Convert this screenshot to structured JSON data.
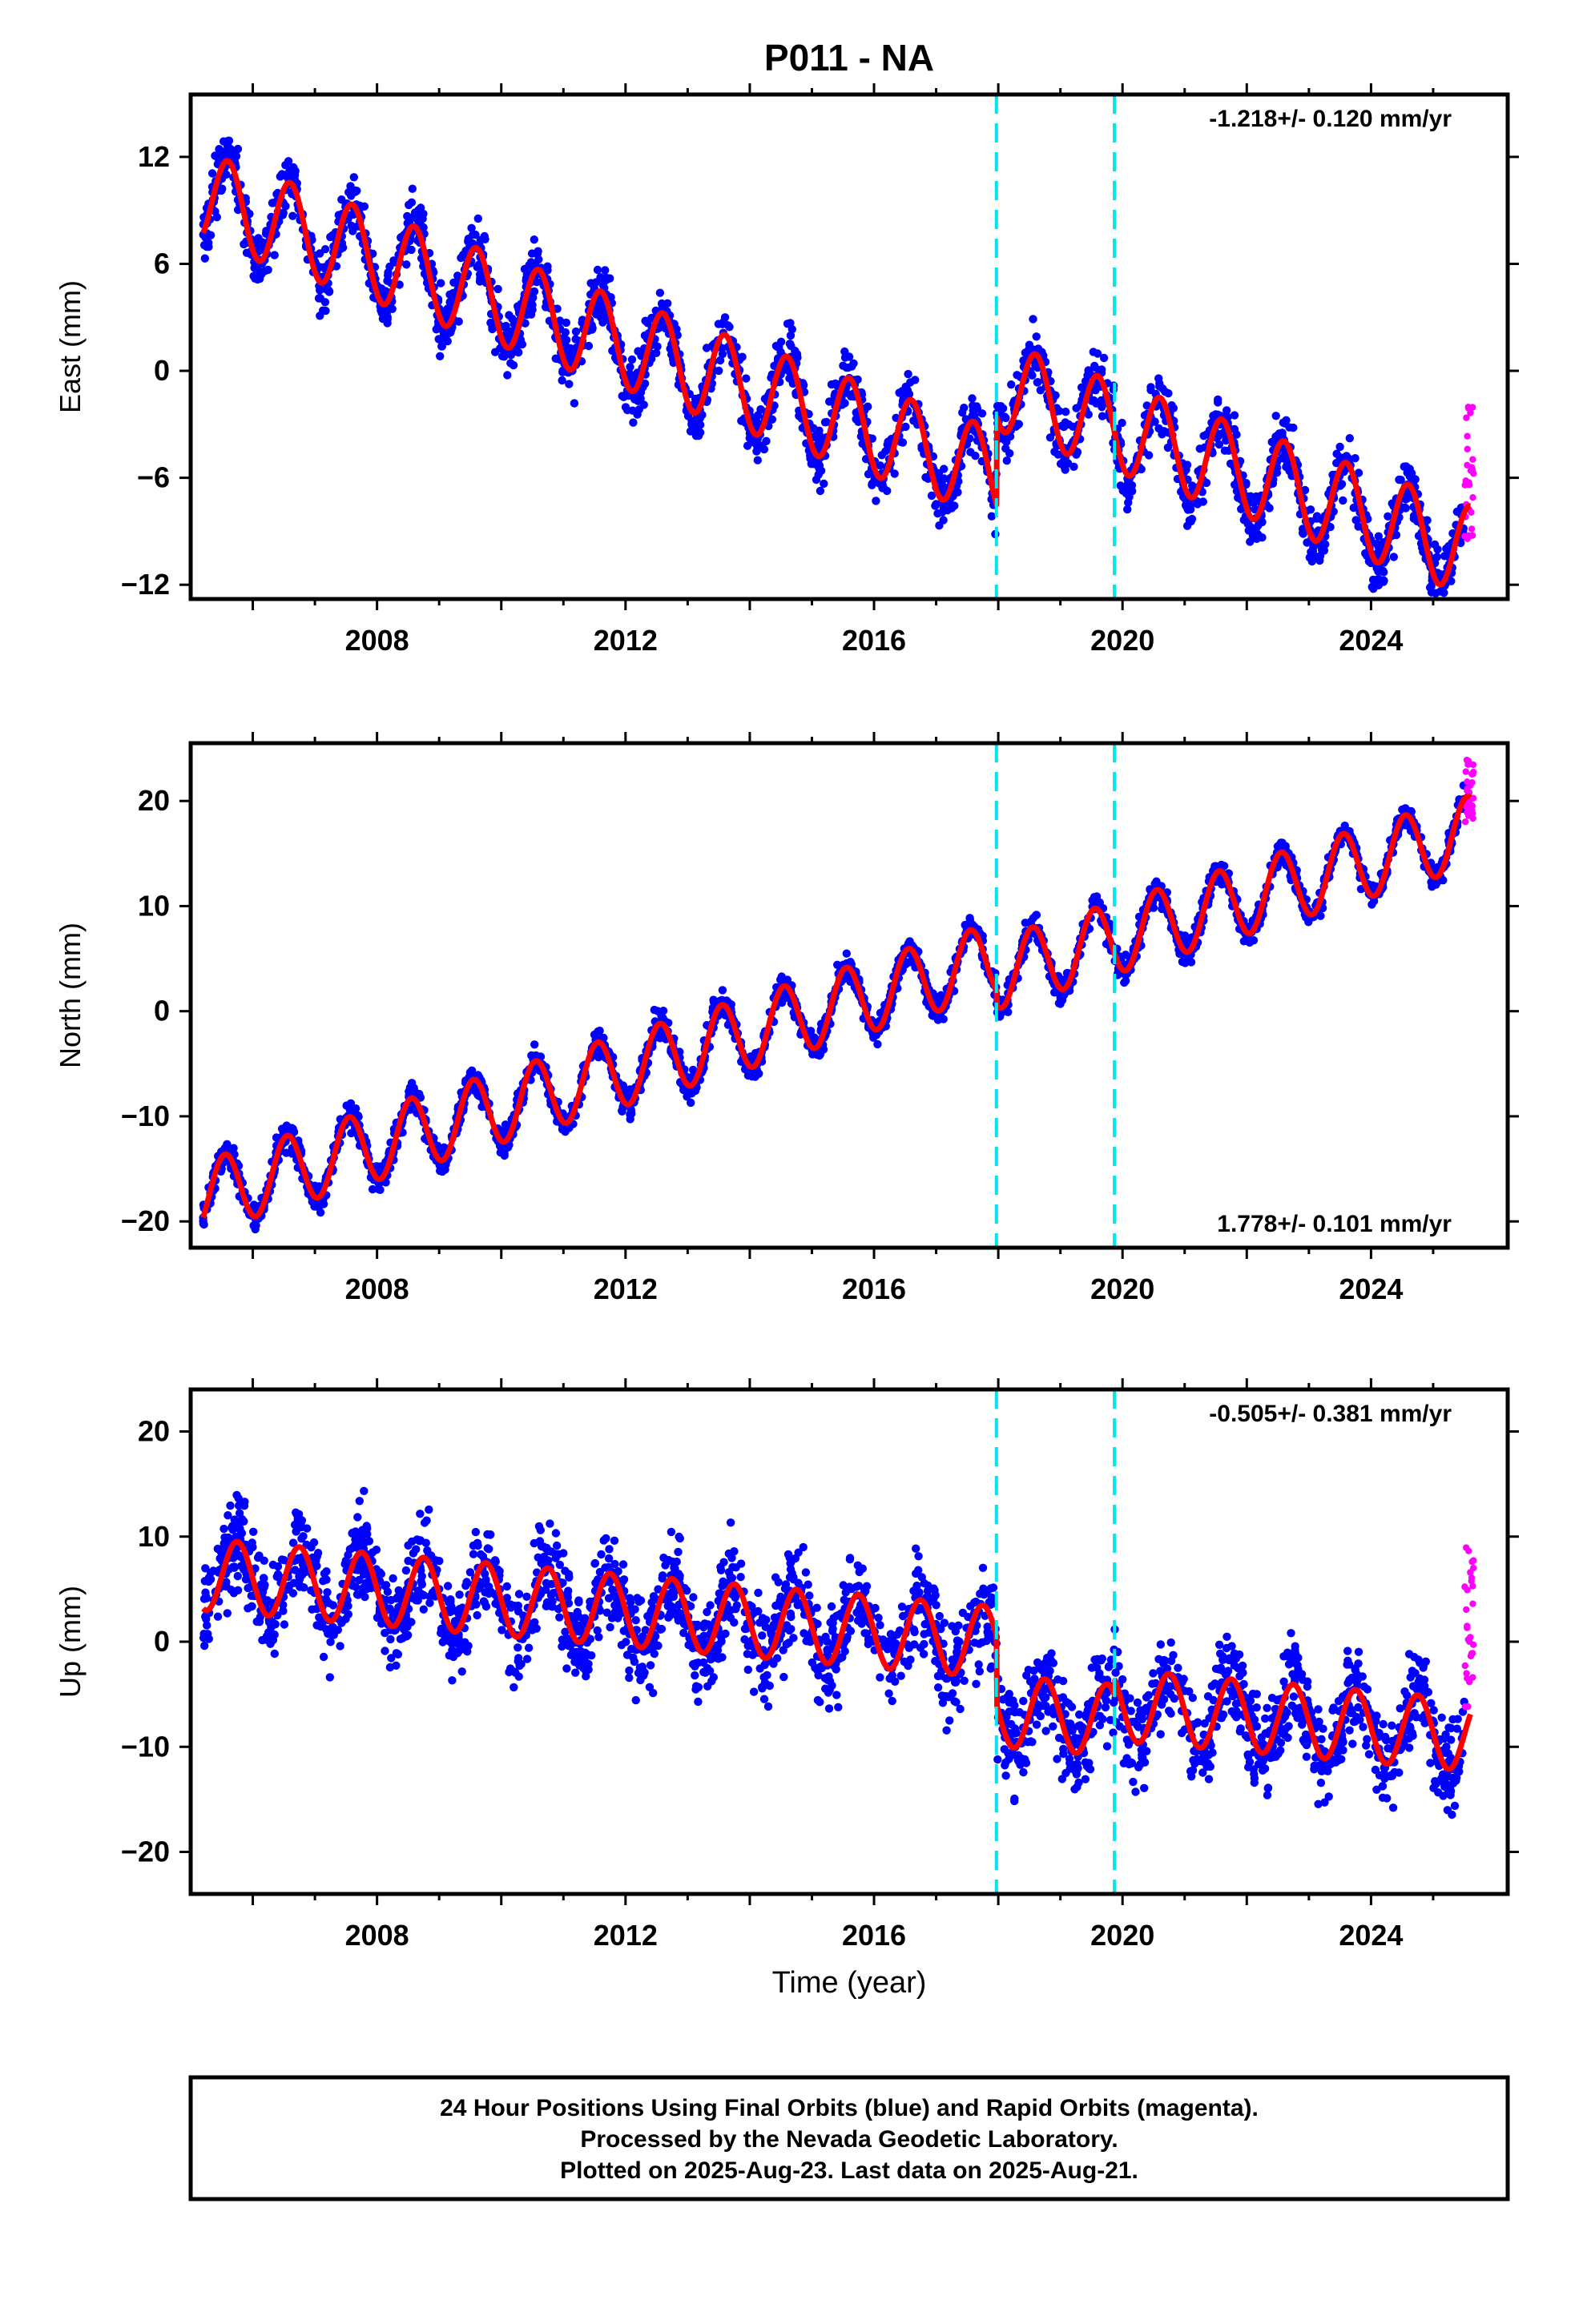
{
  "title": "P011 - NA",
  "xlabel": "Time (year)",
  "footer": {
    "line1": "24 Hour Positions Using Final Orbits (blue) and Rapid Orbits (magenta).",
    "line2": "Processed by the Nevada Geodetic Laboratory.",
    "line3": "Plotted on 2025-Aug-23. Last data on 2025-Aug-21."
  },
  "colors": {
    "final": "#0000ff",
    "rapid": "#ff00ff",
    "model": "#ff0000",
    "event": "#00e5ee"
  },
  "chart_data": [
    {
      "type": "scatter",
      "component": "east",
      "ylabel": "East (mm)",
      "rate_text": "-1.218+/- 0.120 mm/yr",
      "rate_position": "top-right",
      "xlim": [
        2005.0,
        2026.2
      ],
      "ylim": [
        -12.8,
        15.5
      ],
      "xticks": [
        2008,
        2012,
        2016,
        2020,
        2024
      ],
      "yticks": [
        12,
        6,
        0,
        -6,
        -12
      ],
      "ytick_labels": [
        "12",
        "6",
        "0",
        "−6",
        "−12"
      ],
      "events": [
        2017.97,
        2019.87
      ],
      "model": {
        "rate": -1.218,
        "offset_at_2005": 10.0,
        "amplitude": 2.5,
        "peak_phase": 0.6,
        "steps": [
          {
            "t": 2017.97,
            "dy": 5.0
          },
          {
            "t": 2019.87,
            "dy": 0.0
          }
        ]
      },
      "final_range": [
        2005.2,
        2025.5
      ],
      "rapid_range": [
        2025.5,
        2025.65
      ],
      "scatter": 1.4,
      "rapid_spread": 4.0,
      "rapid_center": -5.5
    },
    {
      "type": "scatter",
      "component": "north",
      "ylabel": "North (mm)",
      "rate_text": "1.778+/- 0.101 mm/yr",
      "rate_position": "bottom-right",
      "xlim": [
        2005.0,
        2026.2
      ],
      "ylim": [
        -22.5,
        25.5
      ],
      "xticks": [
        2008,
        2012,
        2016,
        2020,
        2024
      ],
      "yticks": [
        20,
        10,
        0,
        -10,
        -20
      ],
      "ytick_labels": [
        "20",
        "10",
        "0",
        "−10",
        "−20"
      ],
      "events": [
        2017.97,
        2019.87
      ],
      "model": {
        "rate": 1.778,
        "offset_at_2005": -18.0,
        "amplitude": 3.4,
        "peak_phase": 0.55,
        "steps": [
          {
            "t": 2017.97,
            "dy": -1.5
          },
          {
            "t": 2019.87,
            "dy": 0.0
          }
        ]
      },
      "final_range": [
        2005.2,
        2025.5
      ],
      "rapid_range": [
        2025.5,
        2025.65
      ],
      "scatter": 1.1,
      "rapid_spread": 3.0,
      "rapid_center": 21.0
    },
    {
      "type": "scatter",
      "component": "up",
      "ylabel": "Up (mm)",
      "rate_text": "-0.505+/- 0.381 mm/yr",
      "rate_position": "top-right",
      "xlim": [
        2005.0,
        2026.2
      ],
      "ylim": [
        -24,
        24
      ],
      "xticks": [
        2008,
        2012,
        2016,
        2020,
        2024
      ],
      "yticks": [
        20,
        10,
        0,
        -10,
        -20
      ],
      "ytick_labels": [
        "20",
        "10",
        "0",
        "−10",
        "−20"
      ],
      "events": [
        2017.97,
        2019.87
      ],
      "model": {
        "rate": -0.505,
        "offset_at_2005": 6.5,
        "amplitude": 3.4,
        "peak_phase": 0.75,
        "steps": [
          {
            "t": 2017.97,
            "dy": -6.5
          },
          {
            "t": 2019.87,
            "dy": 1.5
          }
        ]
      },
      "final_range": [
        2005.2,
        2025.5
      ],
      "rapid_range": [
        2025.5,
        2025.65
      ],
      "scatter": 3.8,
      "rapid_spread": 9.0,
      "rapid_center": 2.0
    }
  ]
}
